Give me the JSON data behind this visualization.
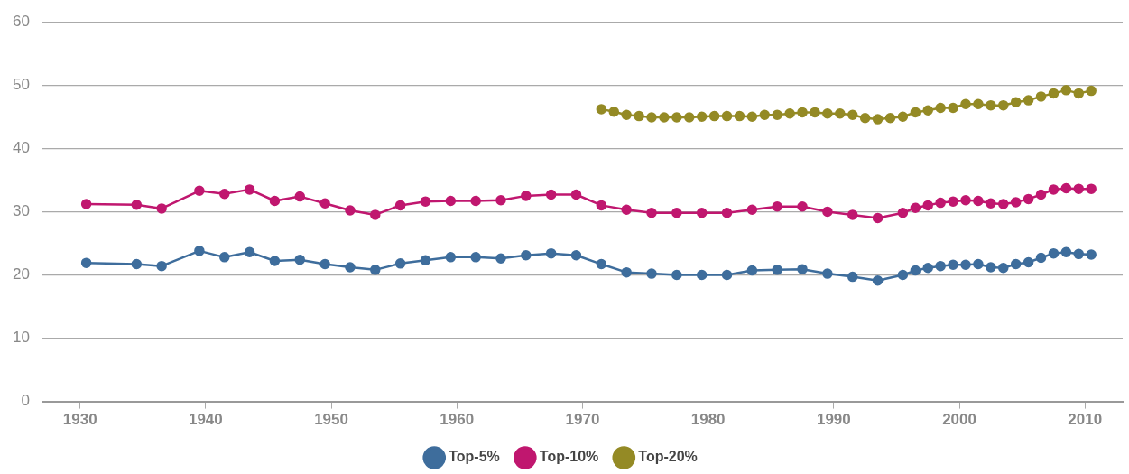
{
  "chart_data": {
    "type": "line",
    "legend": "bottom",
    "grid": "y",
    "marker": "circle",
    "line_style": "solid",
    "xlim": [
      1927,
      2013
    ],
    "xticks": [
      1930,
      1940,
      1950,
      1960,
      1970,
      1980,
      1990,
      2000,
      2010
    ],
    "ylim": [
      0,
      60
    ],
    "yticks": [
      0,
      10,
      20,
      30,
      40,
      50,
      60
    ],
    "series": [
      {
        "name": "Top-5%",
        "color": "#3e6d9c",
        "x": [
          1930.5,
          1934.5,
          1936.5,
          1939.5,
          1941.5,
          1943.5,
          1945.5,
          1947.5,
          1949.5,
          1951.5,
          1953.5,
          1955.5,
          1957.5,
          1959.5,
          1961.5,
          1963.5,
          1965.5,
          1967.5,
          1969.5,
          1971.5,
          1973.5,
          1975.5,
          1977.5,
          1979.5,
          1981.5,
          1983.5,
          1985.5,
          1987.5,
          1989.5,
          1991.5,
          1993.5,
          1995.5,
          1996.5,
          1997.5,
          1998.5,
          1999.5,
          2000.5,
          2001.5,
          2002.5,
          2003.5,
          2004.5,
          2005.5,
          2006.5,
          2007.5,
          2008.5,
          2009.5,
          2010.5
        ],
        "values": [
          21.9,
          21.7,
          21.4,
          23.8,
          22.8,
          23.6,
          22.2,
          22.4,
          21.7,
          21.2,
          20.8,
          21.8,
          22.3,
          22.8,
          22.8,
          22.6,
          23.1,
          23.4,
          23.1,
          21.7,
          20.4,
          20.2,
          20.0,
          20.0,
          20.0,
          20.7,
          20.8,
          20.9,
          20.2,
          19.7,
          19.1,
          20.0,
          20.7,
          21.1,
          21.4,
          21.6,
          21.6,
          21.7,
          21.2,
          21.1,
          21.7,
          22.0,
          22.7,
          23.4,
          23.6,
          23.3,
          23.2
        ]
      },
      {
        "name": "Top-10%",
        "color": "#c0176f",
        "x": [
          1930.5,
          1934.5,
          1936.5,
          1939.5,
          1941.5,
          1943.5,
          1945.5,
          1947.5,
          1949.5,
          1951.5,
          1953.5,
          1955.5,
          1957.5,
          1959.5,
          1961.5,
          1963.5,
          1965.5,
          1967.5,
          1969.5,
          1971.5,
          1973.5,
          1975.5,
          1977.5,
          1979.5,
          1981.5,
          1983.5,
          1985.5,
          1987.5,
          1989.5,
          1991.5,
          1993.5,
          1995.5,
          1996.5,
          1997.5,
          1998.5,
          1999.5,
          2000.5,
          2001.5,
          2002.5,
          2003.5,
          2004.5,
          2005.5,
          2006.5,
          2007.5,
          2008.5,
          2009.5,
          2010.5
        ],
        "values": [
          31.2,
          31.1,
          30.5,
          33.3,
          32.8,
          33.5,
          31.7,
          32.4,
          31.3,
          30.2,
          29.5,
          31.0,
          31.6,
          31.7,
          31.7,
          31.8,
          32.5,
          32.7,
          32.7,
          31.0,
          30.3,
          29.8,
          29.8,
          29.8,
          29.8,
          30.3,
          30.8,
          30.8,
          30.0,
          29.5,
          29.0,
          29.8,
          30.6,
          31.0,
          31.4,
          31.6,
          31.8,
          31.7,
          31.3,
          31.2,
          31.5,
          32.0,
          32.7,
          33.5,
          33.7,
          33.6,
          33.6
        ]
      },
      {
        "name": "Top-20%",
        "color": "#948a25",
        "x": [
          1971.5,
          1972.5,
          1973.5,
          1974.5,
          1975.5,
          1976.5,
          1977.5,
          1978.5,
          1979.5,
          1980.5,
          1981.5,
          1982.5,
          1983.5,
          1984.5,
          1985.5,
          1986.5,
          1987.5,
          1988.5,
          1989.5,
          1990.5,
          1991.5,
          1992.5,
          1993.5,
          1994.5,
          1995.5,
          1996.5,
          1997.5,
          1998.5,
          1999.5,
          2000.5,
          2001.5,
          2002.5,
          2003.5,
          2004.5,
          2005.5,
          2006.5,
          2007.5,
          2008.5,
          2009.5,
          2010.5
        ],
        "values": [
          46.2,
          45.8,
          45.3,
          45.1,
          44.9,
          44.9,
          44.9,
          44.9,
          45.0,
          45.1,
          45.1,
          45.1,
          45.0,
          45.3,
          45.3,
          45.5,
          45.7,
          45.7,
          45.5,
          45.5,
          45.3,
          44.8,
          44.6,
          44.8,
          45.0,
          45.7,
          46.0,
          46.4,
          46.4,
          47.0,
          47.0,
          46.8,
          46.8,
          47.3,
          47.6,
          48.2,
          48.7,
          49.2,
          48.7,
          49.1
        ]
      }
    ]
  }
}
